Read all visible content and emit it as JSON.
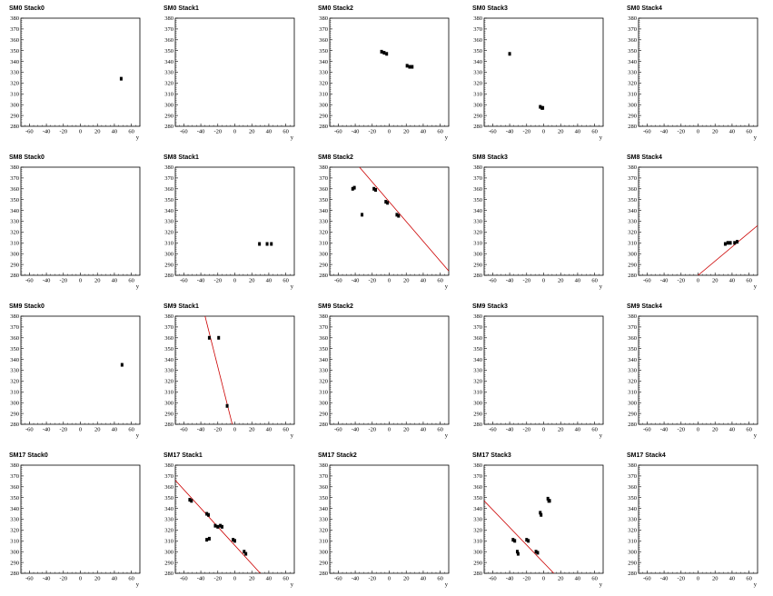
{
  "chart_data": {
    "type": "scatter",
    "axes": {
      "x_ticks": [
        -60,
        -40,
        -20,
        0,
        20,
        40,
        60
      ],
      "y_ticks": [
        280,
        290,
        300,
        310,
        320,
        330,
        340,
        350,
        360,
        370,
        380
      ],
      "xlim": [
        -70,
        70
      ],
      "ylim": [
        280,
        380
      ],
      "xlabel": "y",
      "ylabel": ""
    },
    "line_color": "#cc0000",
    "point_color": "#000000",
    "panels": [
      {
        "title": "SM0 Stack0",
        "points": [
          [
            48,
            324
          ]
        ],
        "line": null
      },
      {
        "title": "SM0 Stack1",
        "points": [],
        "line": null
      },
      {
        "title": "SM0 Stack2",
        "points": [
          [
            -9,
            349
          ],
          [
            -6,
            348
          ],
          [
            -3,
            347
          ],
          [
            21,
            336
          ],
          [
            24,
            335
          ],
          [
            27,
            335
          ]
        ],
        "line": null
      },
      {
        "title": "SM0 Stack3",
        "points": [
          [
            -40,
            347
          ],
          [
            -4,
            298
          ],
          [
            -2,
            297
          ],
          [
            -1,
            297
          ]
        ],
        "line": null
      },
      {
        "title": "SM0 Stack4",
        "points": [],
        "line": null
      },
      {
        "title": "SM8 Stack0",
        "points": [],
        "line": null
      },
      {
        "title": "SM8 Stack1",
        "points": [
          [
            29,
            309
          ],
          [
            38,
            309
          ],
          [
            43,
            309
          ]
        ],
        "line": null
      },
      {
        "title": "SM8 Stack2",
        "points": [
          [
            -43,
            360
          ],
          [
            -41,
            361
          ],
          [
            -18,
            360
          ],
          [
            -16,
            359
          ],
          [
            -4,
            348
          ],
          [
            -2,
            347
          ],
          [
            9,
            336
          ],
          [
            11,
            335
          ],
          [
            -32,
            336
          ]
        ],
        "line": [
          [
            -35,
            380
          ],
          [
            70,
            284
          ]
        ]
      },
      {
        "title": "SM8 Stack3",
        "points": [],
        "line": null
      },
      {
        "title": "SM8 Stack4",
        "points": [
          [
            32,
            309
          ],
          [
            35,
            310
          ],
          [
            38,
            310
          ],
          [
            43,
            310
          ],
          [
            46,
            311
          ]
        ],
        "line": [
          [
            0,
            280
          ],
          [
            70,
            326
          ]
        ]
      },
      {
        "title": "SM9 Stack0",
        "points": [
          [
            49,
            335
          ]
        ],
        "line": null
      },
      {
        "title": "SM9 Stack1",
        "points": [
          [
            -30,
            360
          ],
          [
            -19,
            360
          ],
          [
            -9,
            297
          ]
        ],
        "line": [
          [
            -35,
            380
          ],
          [
            -3,
            280
          ]
        ]
      },
      {
        "title": "SM9 Stack2",
        "points": [],
        "line": null
      },
      {
        "title": "SM9 Stack3",
        "points": [],
        "line": null
      },
      {
        "title": "SM9 Stack4",
        "points": [],
        "line": null
      },
      {
        "title": "SM17 Stack0",
        "points": [],
        "line": null
      },
      {
        "title": "SM17 Stack1",
        "points": [
          [
            -53,
            348
          ],
          [
            -51,
            347
          ],
          [
            -33,
            335
          ],
          [
            -31,
            334
          ],
          [
            -33,
            311
          ],
          [
            -30,
            312
          ],
          [
            -23,
            324
          ],
          [
            -20,
            323
          ],
          [
            -17,
            324
          ],
          [
            -15,
            323
          ],
          [
            -2,
            311
          ],
          [
            0,
            310
          ],
          [
            11,
            300
          ],
          [
            13,
            298
          ]
        ],
        "line": [
          [
            -70,
            366
          ],
          [
            30,
            280
          ]
        ]
      },
      {
        "title": "SM17 Stack2",
        "points": [],
        "line": null
      },
      {
        "title": "SM17 Stack3",
        "points": [
          [
            -36,
            311
          ],
          [
            -34,
            310
          ],
          [
            -31,
            300
          ],
          [
            -30,
            298
          ],
          [
            -20,
            311
          ],
          [
            -18,
            310
          ],
          [
            -9,
            300
          ],
          [
            -7,
            299
          ],
          [
            -4,
            336
          ],
          [
            -3,
            334
          ],
          [
            5,
            349
          ],
          [
            6,
            347
          ],
          [
            7,
            347
          ]
        ],
        "line": [
          [
            -70,
            347
          ],
          [
            12,
            280
          ]
        ]
      },
      {
        "title": "SM17 Stack4",
        "points": [],
        "line": null
      }
    ]
  }
}
